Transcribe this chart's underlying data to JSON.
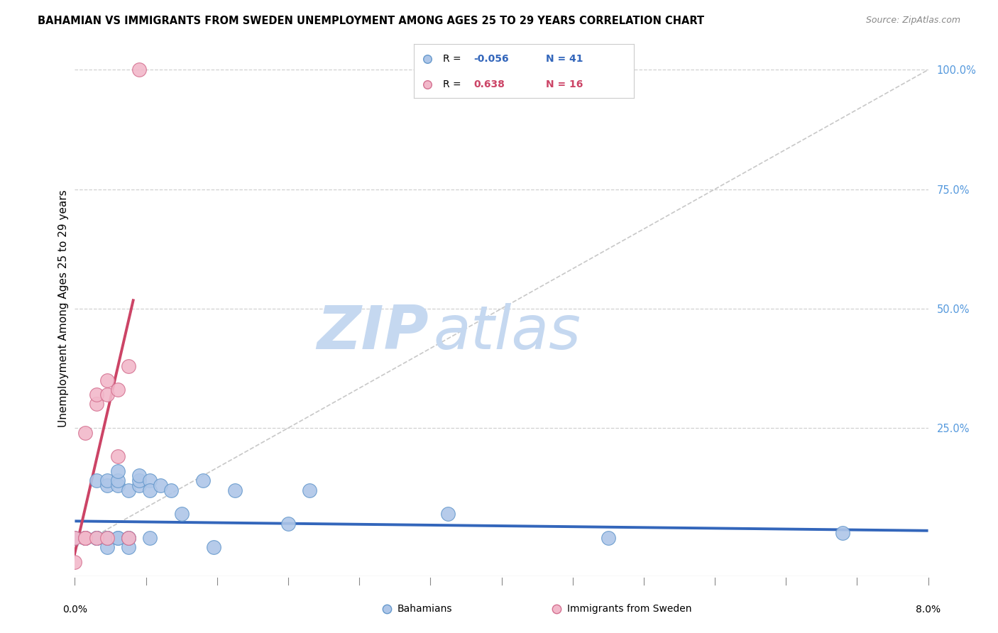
{
  "title": "BAHAMIAN VS IMMIGRANTS FROM SWEDEN UNEMPLOYMENT AMONG AGES 25 TO 29 YEARS CORRELATION CHART",
  "source": "Source: ZipAtlas.com",
  "ylabel": "Unemployment Among Ages 25 to 29 years",
  "ytick_labels": [
    "25.0%",
    "50.0%",
    "75.0%",
    "100.0%"
  ],
  "ytick_positions": [
    0.25,
    0.5,
    0.75,
    1.0
  ],
  "xmin": 0.0,
  "xmax": 0.08,
  "ymin": -0.06,
  "ymax": 1.06,
  "legend_blue_r": "-0.056",
  "legend_blue_n": "41",
  "legend_pink_r": "0.638",
  "legend_pink_n": "16",
  "blue_color": "#aec6e8",
  "pink_color": "#f2b8ca",
  "blue_edge_color": "#6699cc",
  "pink_edge_color": "#d47090",
  "blue_line_color": "#3366bb",
  "pink_line_color": "#cc4466",
  "diagonal_line_color": "#c8c8c8",
  "watermark_zip_color": "#c5d8f0",
  "watermark_atlas_color": "#c5d8f0",
  "right_axis_color": "#5599dd",
  "blue_scatter_x": [
    0.0,
    0.001,
    0.001,
    0.001,
    0.002,
    0.002,
    0.002,
    0.002,
    0.002,
    0.003,
    0.003,
    0.003,
    0.003,
    0.003,
    0.003,
    0.004,
    0.004,
    0.004,
    0.004,
    0.004,
    0.005,
    0.005,
    0.005,
    0.005,
    0.006,
    0.006,
    0.006,
    0.007,
    0.007,
    0.007,
    0.008,
    0.009,
    0.01,
    0.012,
    0.013,
    0.015,
    0.02,
    0.022,
    0.035,
    0.05,
    0.072
  ],
  "blue_scatter_y": [
    0.02,
    0.02,
    0.02,
    0.02,
    0.02,
    0.02,
    0.02,
    0.14,
    0.02,
    0.02,
    0.02,
    0.0,
    0.13,
    0.14,
    0.02,
    0.02,
    0.13,
    0.14,
    0.16,
    0.02,
    0.02,
    0.0,
    0.12,
    0.02,
    0.13,
    0.14,
    0.15,
    0.14,
    0.12,
    0.02,
    0.13,
    0.12,
    0.07,
    0.14,
    0.0,
    0.12,
    0.05,
    0.12,
    0.07,
    0.02,
    0.03
  ],
  "pink_scatter_x": [
    0.0,
    0.0,
    0.001,
    0.001,
    0.001,
    0.002,
    0.002,
    0.002,
    0.003,
    0.003,
    0.003,
    0.004,
    0.004,
    0.005,
    0.005,
    0.006
  ],
  "pink_scatter_y": [
    0.02,
    -0.03,
    0.02,
    0.02,
    0.24,
    0.02,
    0.3,
    0.32,
    0.02,
    0.32,
    0.35,
    0.19,
    0.33,
    0.02,
    0.38,
    1.0
  ],
  "blue_trend_x": [
    0.0,
    0.08
  ],
  "blue_trend_y": [
    0.055,
    0.035
  ],
  "pink_trend_x": [
    -0.0005,
    0.0055
  ],
  "pink_trend_y": [
    -0.06,
    0.52
  ],
  "diag_line_x": [
    0.0,
    0.08
  ],
  "diag_line_y": [
    0.0,
    1.0
  ]
}
